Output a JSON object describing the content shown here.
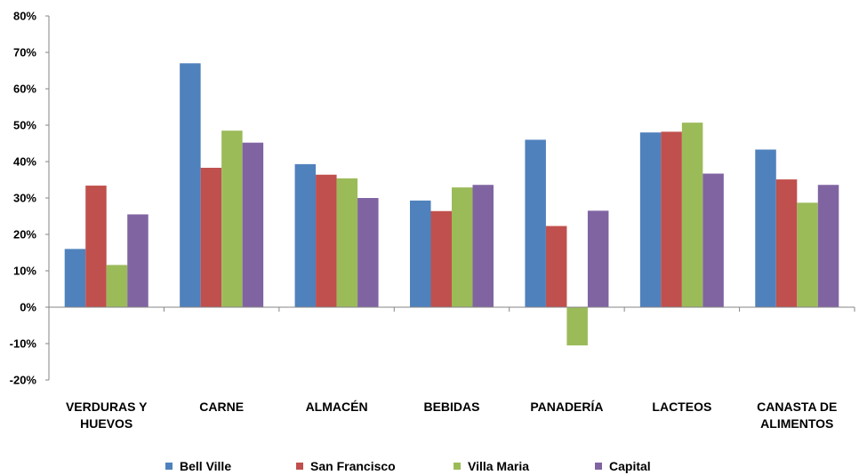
{
  "chart_data": {
    "type": "bar",
    "categories": [
      [
        "VERDURAS Y",
        "HUEVOS"
      ],
      [
        "CARNE"
      ],
      [
        "ALMACÉN"
      ],
      [
        "BEBIDAS"
      ],
      [
        "PANADERÍA"
      ],
      [
        "LACTEOS"
      ],
      [
        "CANASTA DE",
        "ALIMENTOS"
      ]
    ],
    "series": [
      {
        "name": "Bell Ville",
        "color": "#4f81bd",
        "values": [
          0.16,
          0.67,
          0.393,
          0.293,
          0.46,
          0.48,
          0.433
        ]
      },
      {
        "name": "San Francisco",
        "color": "#c0504d",
        "values": [
          0.334,
          0.383,
          0.364,
          0.264,
          0.223,
          0.482,
          0.351
        ]
      },
      {
        "name": "Villa Maria",
        "color": "#9bbb59",
        "values": [
          0.116,
          0.485,
          0.354,
          0.329,
          -0.105,
          0.507,
          0.287
        ]
      },
      {
        "name": "Capital",
        "color": "#8064a2",
        "values": [
          0.255,
          0.452,
          0.3,
          0.336,
          0.265,
          0.367,
          0.336
        ]
      }
    ],
    "ylim": [
      -0.2,
      0.8
    ],
    "yticks": [
      "-20%",
      "-10%",
      "0%",
      "10%",
      "20%",
      "30%",
      "40%",
      "50%",
      "60%",
      "70%",
      "80%"
    ],
    "grid": false,
    "legend_position": "bottom"
  }
}
